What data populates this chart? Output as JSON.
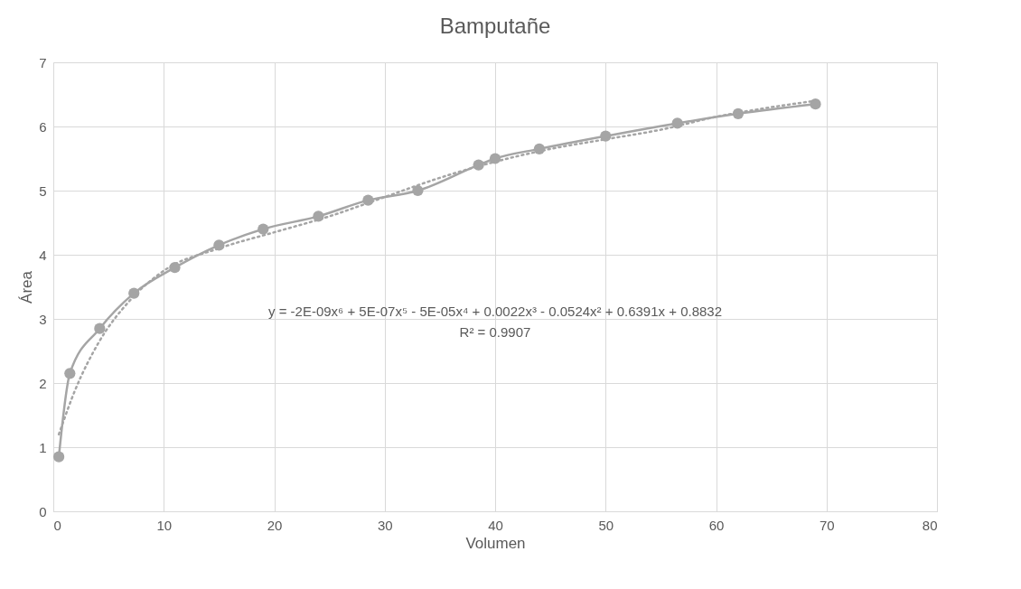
{
  "chart_data": {
    "type": "line",
    "title": "Bamputañe",
    "xlabel": "Volumen",
    "ylabel": "Área",
    "xlim": [
      0,
      80
    ],
    "xticks": [
      0,
      10,
      20,
      30,
      40,
      50,
      60,
      70,
      80
    ],
    "ylim": [
      0,
      7
    ],
    "yticks": [
      0,
      1,
      2,
      3,
      4,
      5,
      6,
      7
    ],
    "grid": true,
    "series": [
      {
        "color": "#a5a5a5",
        "marker": "circle",
        "line_style": "solid",
        "x": [
          0.5,
          1.5,
          4.2,
          7.3,
          11,
          15,
          19,
          24,
          28.5,
          33,
          38.5,
          40,
          44,
          50,
          56.5,
          62,
          69
        ],
        "values": [
          0.85,
          2.15,
          2.85,
          3.4,
          3.8,
          4.15,
          4.4,
          4.6,
          4.85,
          5.0,
          5.4,
          5.5,
          5.65,
          5.85,
          6.05,
          6.2,
          6.35
        ]
      },
      {
        "color": "#a5a5a5",
        "marker": "none",
        "line_style": "dotted",
        "x": [
          0.5,
          2,
          4,
          7,
          10,
          15,
          20,
          25,
          30,
          35,
          40,
          45,
          50,
          55,
          60,
          65,
          69
        ],
        "values": [
          1.2,
          1.9,
          2.6,
          3.3,
          3.75,
          4.1,
          4.35,
          4.6,
          4.9,
          5.2,
          5.45,
          5.65,
          5.8,
          5.95,
          6.15,
          6.3,
          6.4
        ]
      }
    ],
    "annotations": [
      "y = -2E-09x⁶ + 5E-07x⁵ - 5E-05x⁴ + 0.0022x³ - 0.0524x² + 0.6391x + 0.8832",
      "R² = 0.9907"
    ]
  }
}
